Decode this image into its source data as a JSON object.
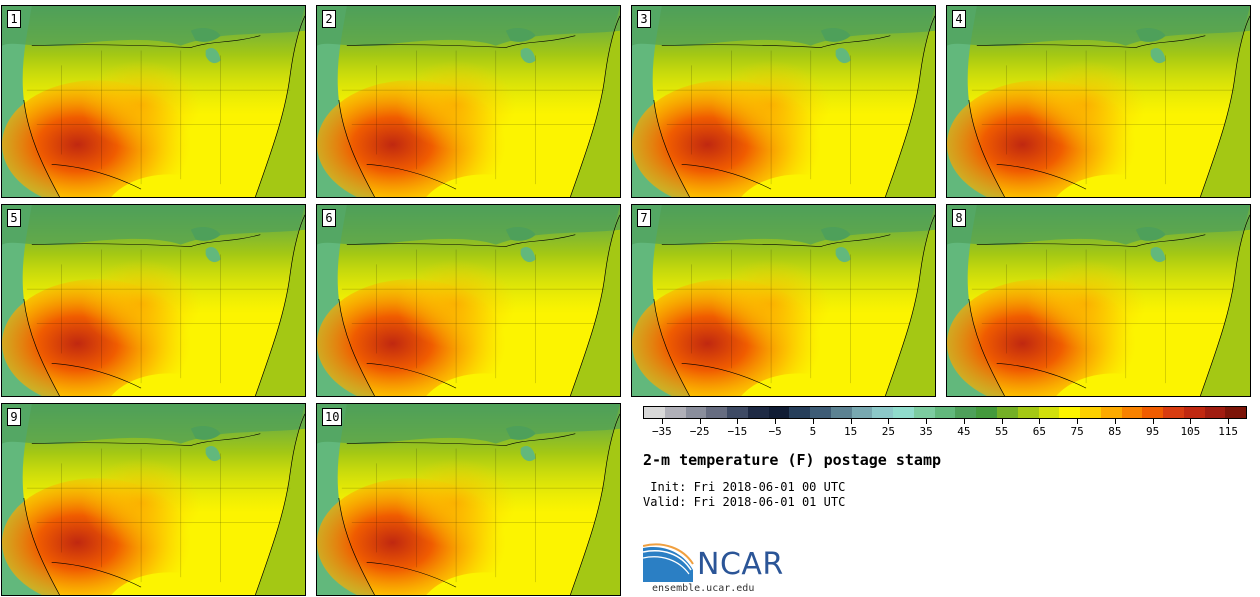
{
  "panels": [
    {
      "label": "1"
    },
    {
      "label": "2"
    },
    {
      "label": "3"
    },
    {
      "label": "4"
    },
    {
      "label": "5"
    },
    {
      "label": "6"
    },
    {
      "label": "7"
    },
    {
      "label": "8"
    },
    {
      "label": "9"
    },
    {
      "label": "10"
    }
  ],
  "colorbar": {
    "colors": [
      "#d8d8d8",
      "#b0b0b8",
      "#8a8e9c",
      "#666c80",
      "#3e4a64",
      "#1e2a44",
      "#101c34",
      "#263e5a",
      "#3e5c76",
      "#5c8292",
      "#78a8b0",
      "#8cc8c8",
      "#90dccc",
      "#7ccca0",
      "#62b87c",
      "#4ea05a",
      "#449a3c",
      "#74b026",
      "#a4c814",
      "#d2e00c",
      "#fcf400",
      "#fcd000",
      "#fcaa00",
      "#f88200",
      "#f05c00",
      "#d83c10",
      "#c02810",
      "#a01c10",
      "#7c1408"
    ],
    "tick_labels": [
      "−35",
      "−25",
      "−15",
      "−5",
      "5",
      "15",
      "25",
      "35",
      "45",
      "55",
      "65",
      "75",
      "85",
      "95",
      "105",
      "115"
    ],
    "tick_values": [
      -35,
      -25,
      -15,
      -5,
      5,
      15,
      25,
      35,
      45,
      55,
      65,
      75,
      85,
      95,
      105,
      115
    ],
    "range": [
      -40,
      120
    ]
  },
  "title": "2-m temperature (F) postage stamp",
  "init_line": " Init: Fri 2018-06-01 00 UTC",
  "valid_line": "Valid: Fri 2018-06-01 01 UTC",
  "logo": {
    "text": "NCAR",
    "url": "ensemble.ucar.edu",
    "color": "#2b5597"
  }
}
